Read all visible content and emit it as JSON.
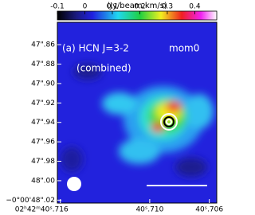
{
  "chart_data": {
    "type": "image",
    "colorbar_label": "(Jy/beam.km/s)",
    "clim": [
      -0.1,
      0.48
    ],
    "cticks": [
      -0.1,
      0,
      0.1,
      0.2,
      0.3,
      0.4
    ],
    "annotations": [
      "(a) HCN J=3-2",
      "mom0",
      "(combined)"
    ],
    "xlim": [
      40.7162,
      40.7055
    ],
    "xticks": [
      {
        "value": 40.716,
        "label": "02ʰ42ᵐ40ˢ.716"
      },
      {
        "value": 40.71,
        "label": "40ˢ.710"
      },
      {
        "value": 40.706,
        "label": "40ˢ.706"
      }
    ],
    "ylim": [
      47.837,
      48.023
    ],
    "yticks": [
      {
        "value": 47.86,
        "label": "47\".86"
      },
      {
        "value": 47.88,
        "label": "47\".88"
      },
      {
        "value": 47.9,
        "label": "47\".90"
      },
      {
        "value": 47.92,
        "label": "47\".92"
      },
      {
        "value": 47.94,
        "label": "47\".94"
      },
      {
        "value": 47.96,
        "label": "47\".96"
      },
      {
        "value": 47.98,
        "label": "47\".98"
      },
      {
        "value": 48.0,
        "label": "48\".00"
      },
      {
        "value": 48.02,
        "label": "−0°00'48\".02"
      }
    ]
  }
}
